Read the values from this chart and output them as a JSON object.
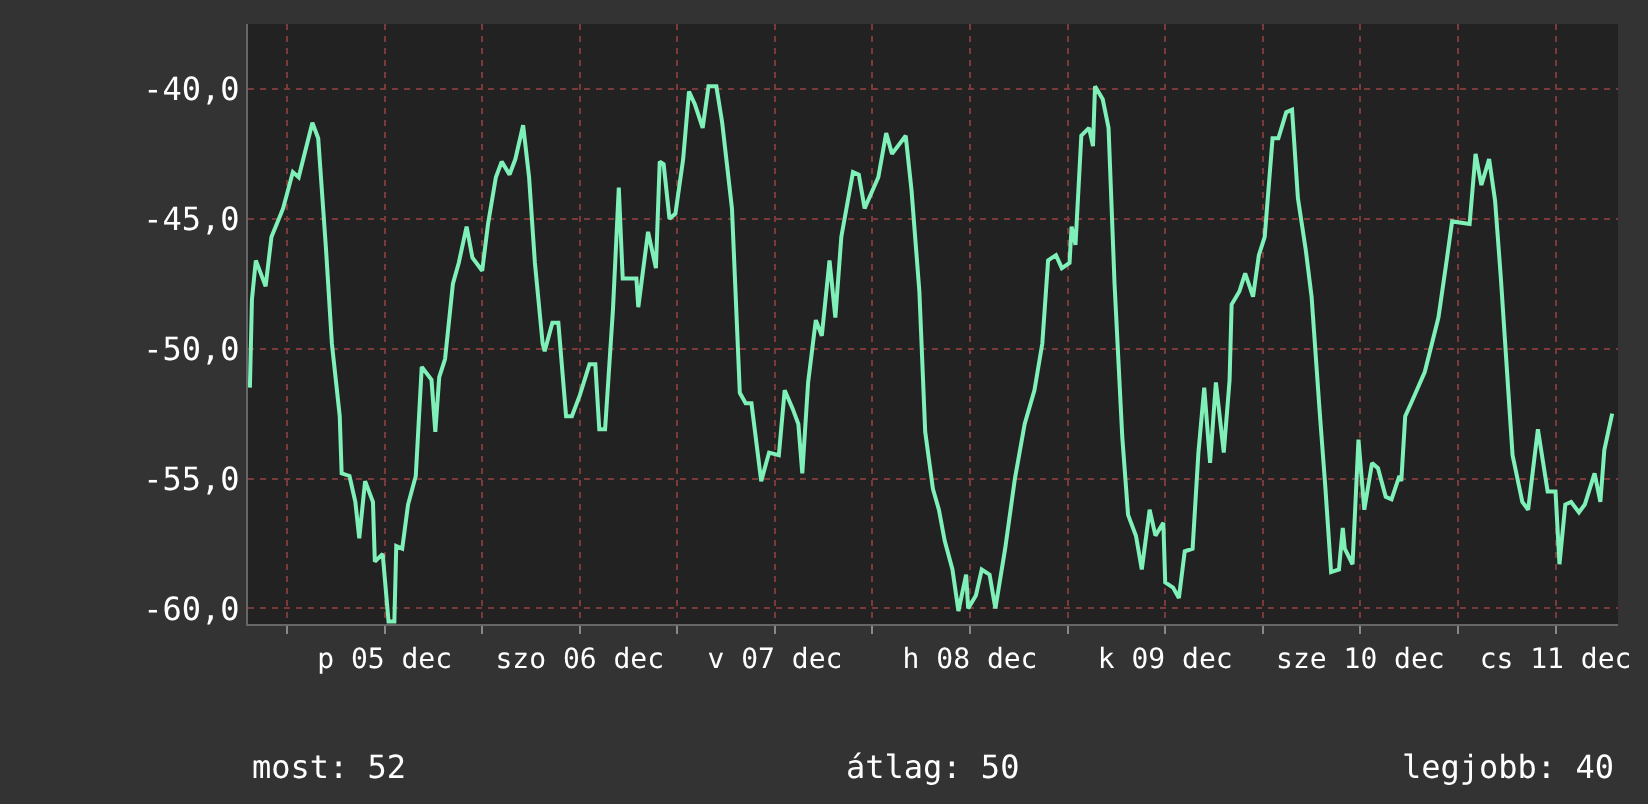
{
  "chart_data": {
    "type": "line",
    "x": [
      "--12-04T19:26",
      "--12-04T19:41",
      "--12-04T20:10",
      "--12-04T21:22",
      "--12-04T22:05",
      "--12-04T23:31",
      "--12-05T00:43",
      "--12-05T01:26",
      "--12-05T03:07",
      "--12-05T03:50",
      "--12-05T04:48",
      "--12-05T05:31",
      "--12-05T06:29",
      "--12-05T06:43",
      "--12-05T07:41",
      "--12-05T08:24",
      "--12-05T08:53",
      "--12-05T09:36",
      "--12-05T10:34",
      "--12-05T10:48",
      "--12-05T11:46",
      "--12-05T12:29",
      "--12-05T13:12",
      "--12-05T13:26",
      "--12-05T14:10",
      "--12-05T14:53",
      "--12-05T15:50",
      "--12-05T16:34",
      "--12-05T17:46",
      "--12-05T18:14",
      "--12-05T18:43",
      "--12-05T19:26",
      "--12-05T20:24",
      "--12-05T21:07",
      "--12-05T22:05",
      "--12-05T22:48",
      "--12-06T00:00",
      "--12-06T00:43",
      "--12-06T01:41",
      "--12-06T02:24",
      "--12-06T03:22",
      "--12-06T04:05",
      "--12-06T05:02",
      "--12-06T05:46",
      "--12-06T06:29",
      "--12-06T07:26",
      "--12-06T07:41",
      "--12-06T08:38",
      "--12-06T09:22",
      "--12-06T10:19",
      "--12-06T11:02",
      "--12-06T12:00",
      "--12-06T13:12",
      "--12-06T13:55",
      "--12-06T14:24",
      "--12-06T15:07",
      "--12-06T16:05",
      "--12-06T16:48",
      "--12-06T17:17",
      "--12-06T18:58",
      "--12-06T19:12",
      "--12-06T20:24",
      "--12-06T21:22",
      "--12-06T21:50",
      "--12-06T22:19",
      "--12-06T23:02",
      "--12-06T23:46",
      "--12-07T00:43",
      "--12-07T01:26",
      "--12-07T02:10",
      "--12-07T03:07",
      "--12-07T03:50",
      "--12-07T04:48",
      "--12-07T05:31",
      "--12-07T06:43",
      "--12-07T07:41",
      "--12-07T08:24",
      "--12-07T09:07",
      "--12-07T10:19",
      "--12-07T11:17",
      "--12-07T12:29",
      "--12-07T13:12",
      "--12-07T14:10",
      "--12-07T14:53",
      "--12-07T15:22",
      "--12-07T16:05",
      "--12-07T17:02",
      "--12-07T17:46",
      "--12-07T18:43",
      "--12-07T19:26",
      "--12-07T20:10",
      "--12-07T21:36",
      "--12-07T22:19",
      "--12-07T23:02",
      "--12-08T00:43",
      "--12-08T01:41",
      "--12-08T02:24",
      "--12-08T04:05",
      "--12-08T04:48",
      "--12-08T05:46",
      "--12-08T06:29",
      "--12-08T07:26",
      "--12-08T08:10",
      "--12-08T08:53",
      "--12-08T09:50",
      "--12-08T10:34",
      "--12-08T11:31",
      "--12-08T11:46",
      "--12-08T12:43",
      "--12-08T13:26",
      "--12-08T14:24",
      "--12-08T15:07",
      "--12-08T16:19",
      "--12-08T17:31",
      "--12-08T18:43",
      "--12-08T19:55",
      "--12-08T20:53",
      "--12-08T21:36",
      "--12-08T22:34",
      "--12-08T23:17",
      "--12-09T00:14",
      "--12-09T00:29",
      "--12-09T00:58",
      "--12-09T01:41",
      "--12-09T02:38",
      "--12-09T03:07",
      "--12-09T03:22",
      "--12-09T04:19",
      "--12-09T05:02",
      "--12-09T05:46",
      "--12-09T06:43",
      "--12-09T07:26",
      "--12-09T08:24",
      "--12-09T09:07",
      "--12-09T10:05",
      "--12-09T10:48",
      "--12-09T11:46",
      "--12-09T12:00",
      "--12-09T12:58",
      "--12-09T13:41",
      "--12-09T14:24",
      "--12-09T15:22",
      "--12-09T16:05",
      "--12-09T16:48",
      "--12-09T17:31",
      "--12-09T18:14",
      "--12-09T19:12",
      "--12-09T19:55",
      "--12-09T20:10",
      "--12-09T21:07",
      "--12-09T21:50",
      "--12-09T22:48",
      "--12-09T23:31",
      "--12-10T00:14",
      "--12-10T01:12",
      "--12-10T01:55",
      "--12-10T02:53",
      "--12-10T03:36",
      "--12-10T04:19",
      "--12-10T05:17",
      "--12-10T06:00",
      "--12-10T06:58",
      "--12-10T07:41",
      "--12-10T08:24",
      "--12-10T09:22",
      "--12-10T09:50",
      "--12-10T10:05",
      "--12-10T11:02",
      "--12-10T11:46",
      "--12-10T12:29",
      "--12-10T13:26",
      "--12-10T14:10",
      "--12-10T15:07",
      "--12-10T15:50",
      "--12-10T16:48",
      "--12-10T17:02",
      "--12-10T17:31",
      "--12-10T18:14",
      "--12-10T19:55",
      "--12-10T21:36",
      "--12-10T22:34",
      "--12-10T23:17",
      "--12-11T01:26",
      "--12-11T02:10",
      "--12-11T02:53",
      "--12-11T03:50",
      "--12-11T04:34",
      "--12-11T05:17",
      "--12-11T06:43",
      "--12-11T07:55",
      "--12-11T08:38",
      "--12-11T09:50",
      "--12-11T11:02",
      "--12-11T12:00",
      "--12-11T12:29",
      "--12-11T13:12",
      "--12-11T13:55",
      "--12-11T14:53",
      "--12-11T15:36",
      "--12-11T16:48",
      "--12-11T17:31",
      "--12-11T18:00",
      "--12-11T18:58"
    ],
    "series": [
      {
        "color": "#7ef0b8",
        "values": [
          -51.5,
          -48.1,
          -46.6,
          -47.6,
          -45.7,
          -44.6,
          -43.2,
          -43.4,
          -41.3,
          -41.9,
          -46.2,
          -49.8,
          -52.6,
          -54.8,
          -54.9,
          -55.9,
          -57.3,
          -55.1,
          -55.9,
          -58.2,
          -57.9,
          -60.5,
          -60.5,
          -57.6,
          -57.7,
          -56.0,
          -54.9,
          -50.7,
          -51.2,
          -53.2,
          -51.1,
          -50.4,
          -47.5,
          -46.7,
          -45.3,
          -46.5,
          -47.0,
          -45.2,
          -43.4,
          -42.8,
          -43.3,
          -42.7,
          -41.4,
          -43.4,
          -46.7,
          -49.8,
          -50.1,
          -49.0,
          -49.0,
          -52.6,
          -52.6,
          -51.8,
          -50.6,
          -50.6,
          -53.1,
          -53.1,
          -48.5,
          -43.8,
          -47.3,
          -47.3,
          -48.4,
          -45.5,
          -46.9,
          -42.8,
          -42.9,
          -45.0,
          -44.8,
          -42.7,
          -40.1,
          -40.6,
          -41.5,
          -39.9,
          -39.9,
          -41.3,
          -44.6,
          -51.7,
          -52.1,
          -52.1,
          -55.1,
          -54.0,
          -54.1,
          -51.6,
          -52.3,
          -52.9,
          -54.8,
          -51.3,
          -48.9,
          -49.5,
          -46.6,
          -48.8,
          -45.7,
          -43.2,
          -43.3,
          -44.6,
          -43.4,
          -41.7,
          -42.5,
          -41.8,
          -43.9,
          -47.8,
          -53.2,
          -55.4,
          -56.2,
          -57.4,
          -58.5,
          -60.1,
          -58.7,
          -60.0,
          -59.5,
          -58.5,
          -58.7,
          -60.0,
          -57.7,
          -55.0,
          -52.9,
          -51.6,
          -49.8,
          -46.6,
          -46.4,
          -46.9,
          -46.7,
          -45.3,
          -46.0,
          -41.8,
          -41.5,
          -42.2,
          -39.9,
          -40.4,
          -41.5,
          -47.5,
          -53.4,
          -56.4,
          -57.2,
          -58.5,
          -56.2,
          -57.2,
          -56.7,
          -59.0,
          -59.2,
          -59.6,
          -57.8,
          -57.7,
          -54.0,
          -51.5,
          -54.4,
          -51.3,
          -54.0,
          -51.2,
          -48.3,
          -47.8,
          -47.1,
          -48.0,
          -46.4,
          -45.7,
          -41.9,
          -41.9,
          -40.9,
          -40.8,
          -44.2,
          -46.2,
          -48.0,
          -52.3,
          -55.3,
          -58.6,
          -58.5,
          -56.9,
          -57.7,
          -58.3,
          -53.5,
          -56.2,
          -54.4,
          -54.6,
          -55.7,
          -55.8,
          -54.9,
          -55.1,
          -52.6,
          -52.1,
          -50.9,
          -48.8,
          -46.7,
          -45.1,
          -45.2,
          -42.5,
          -43.7,
          -42.7,
          -44.3,
          -47.3,
          -54.1,
          -55.9,
          -56.2,
          -53.1,
          -55.5,
          -55.5,
          -58.3,
          -56.0,
          -55.9,
          -56.3,
          -56.0,
          -54.8,
          -55.9,
          -53.9,
          -52.5
        ]
      }
    ],
    "xlim": [
      "--12-04T19:12",
      "--12-11T19:41"
    ],
    "xticks": [
      {
        "value": "--12-05",
        "label": null
      },
      {
        "value": "--12-05T12:00",
        "label": "p 05 dec"
      },
      {
        "value": "--12-06",
        "label": null
      },
      {
        "value": "--12-06T12:00",
        "label": "szo 06 dec"
      },
      {
        "value": "--12-07",
        "label": null
      },
      {
        "value": "--12-07T12:00",
        "label": "v 07 dec"
      },
      {
        "value": "--12-08",
        "label": null
      },
      {
        "value": "--12-08T12:00",
        "label": "h 08 dec"
      },
      {
        "value": "--12-09",
        "label": null
      },
      {
        "value": "--12-09T12:00",
        "label": "k 09 dec"
      },
      {
        "value": "--12-10",
        "label": null
      },
      {
        "value": "--12-10T12:00",
        "label": "sze 10 dec"
      },
      {
        "value": "--12-11",
        "label": null
      },
      {
        "value": "--12-11T12:00",
        "label": "cs 11 dec"
      }
    ],
    "ylim": [
      -60.6,
      -37.5
    ],
    "yticks": [
      {
        "value": -60,
        "label": "-60,0"
      },
      {
        "value": -55,
        "label": "-55,0"
      },
      {
        "value": -50,
        "label": "-50,0"
      },
      {
        "value": -45,
        "label": "-45,0"
      },
      {
        "value": -40,
        "label": "-40,0"
      }
    ],
    "grid": true,
    "marker": "none",
    "line_style": "solid",
    "annotations": [
      "most: 52",
      "átlag: 50",
      "legjobb: 40"
    ]
  }
}
